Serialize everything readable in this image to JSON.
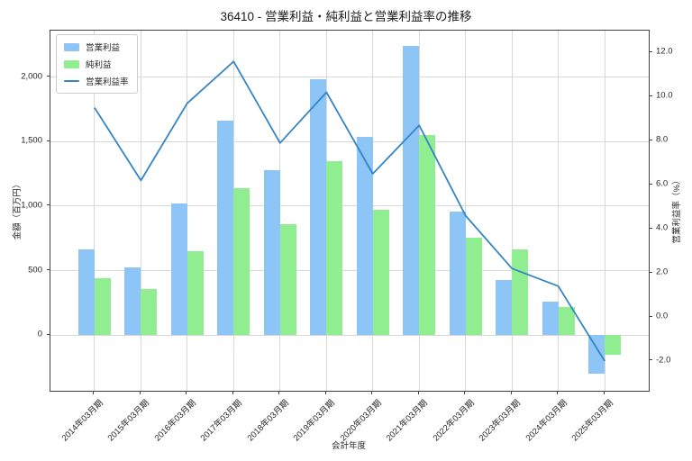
{
  "chart": {
    "title": "36410 - 営業利益・純利益と営業利益率の推移",
    "xlabel": "会計年度",
    "ylabel_left": "金額（百万円）",
    "ylabel_right": "営業利益率（%）"
  },
  "legend": {
    "position": "upper-left",
    "items": [
      {
        "label": "営業利益",
        "type": "patch",
        "color": "#8cc5f6"
      },
      {
        "label": "純利益",
        "type": "patch",
        "color": "#90ee90"
      },
      {
        "label": "営業利益率",
        "type": "line",
        "color": "#3585c5"
      }
    ]
  },
  "chart_data": {
    "type": "bar",
    "subtype": "grouped-bars-with-line",
    "title": "36410 - 営業利益・純利益と営業利益率の推移",
    "xlabel": "会計年度",
    "ylabel": "金額（百万円）",
    "ylabel2": "営業利益率（%）",
    "categories": [
      "2014年03月期",
      "2015年03月期",
      "2016年03月期",
      "2017年03月期",
      "2018年03月期",
      "2019年03月期",
      "2020年03月期",
      "2021年03月期",
      "2022年03月期",
      "2023年03月期",
      "2024年03月期",
      "2025年03月期"
    ],
    "series": [
      {
        "name": "営業利益",
        "type": "bar",
        "axis": "left",
        "color": "#8cc5f6",
        "values": [
          665,
          525,
          1020,
          1660,
          1280,
          1980,
          1540,
          2240,
          960,
          425,
          260,
          -300
        ]
      },
      {
        "name": "純利益",
        "type": "bar",
        "axis": "left",
        "color": "#90ee90",
        "values": [
          440,
          360,
          650,
          1140,
          860,
          1350,
          970,
          1550,
          755,
          665,
          220,
          -150
        ]
      },
      {
        "name": "営業利益率",
        "type": "line",
        "axis": "right",
        "color": "#3585c5",
        "values": [
          9.5,
          6.2,
          9.7,
          11.6,
          7.9,
          10.2,
          6.5,
          8.7,
          4.6,
          2.2,
          1.4,
          -2.0
        ]
      }
    ],
    "axes": {
      "left": {
        "min": -430,
        "max": 2360,
        "ticks": [
          {
            "v": 0,
            "label": "0"
          },
          {
            "v": 500,
            "label": "500"
          },
          {
            "v": 1000,
            "label": "1,000"
          },
          {
            "v": 1500,
            "label": "1,500"
          },
          {
            "v": 2000,
            "label": "2,000"
          }
        ]
      },
      "right": {
        "min": -3.35,
        "max": 13.0,
        "ticks": [
          {
            "v": -2,
            "label": "-2.0"
          },
          {
            "v": 0,
            "label": "0.0"
          },
          {
            "v": 2,
            "label": "2.0"
          },
          {
            "v": 4,
            "label": "4.0"
          },
          {
            "v": 6,
            "label": "6.0"
          },
          {
            "v": 8,
            "label": "8.0"
          },
          {
            "v": 10,
            "label": "10.0"
          },
          {
            "v": 12,
            "label": "12.0"
          }
        ]
      },
      "x": {
        "margin": 0.95,
        "bar_width": 0.35
      }
    },
    "grid": {
      "horizontal": "left-ticks",
      "vertical": "category-centers",
      "color": "#d8d8d8"
    },
    "legend_entries": [
      "営業利益",
      "純利益",
      "営業利益率"
    ]
  }
}
